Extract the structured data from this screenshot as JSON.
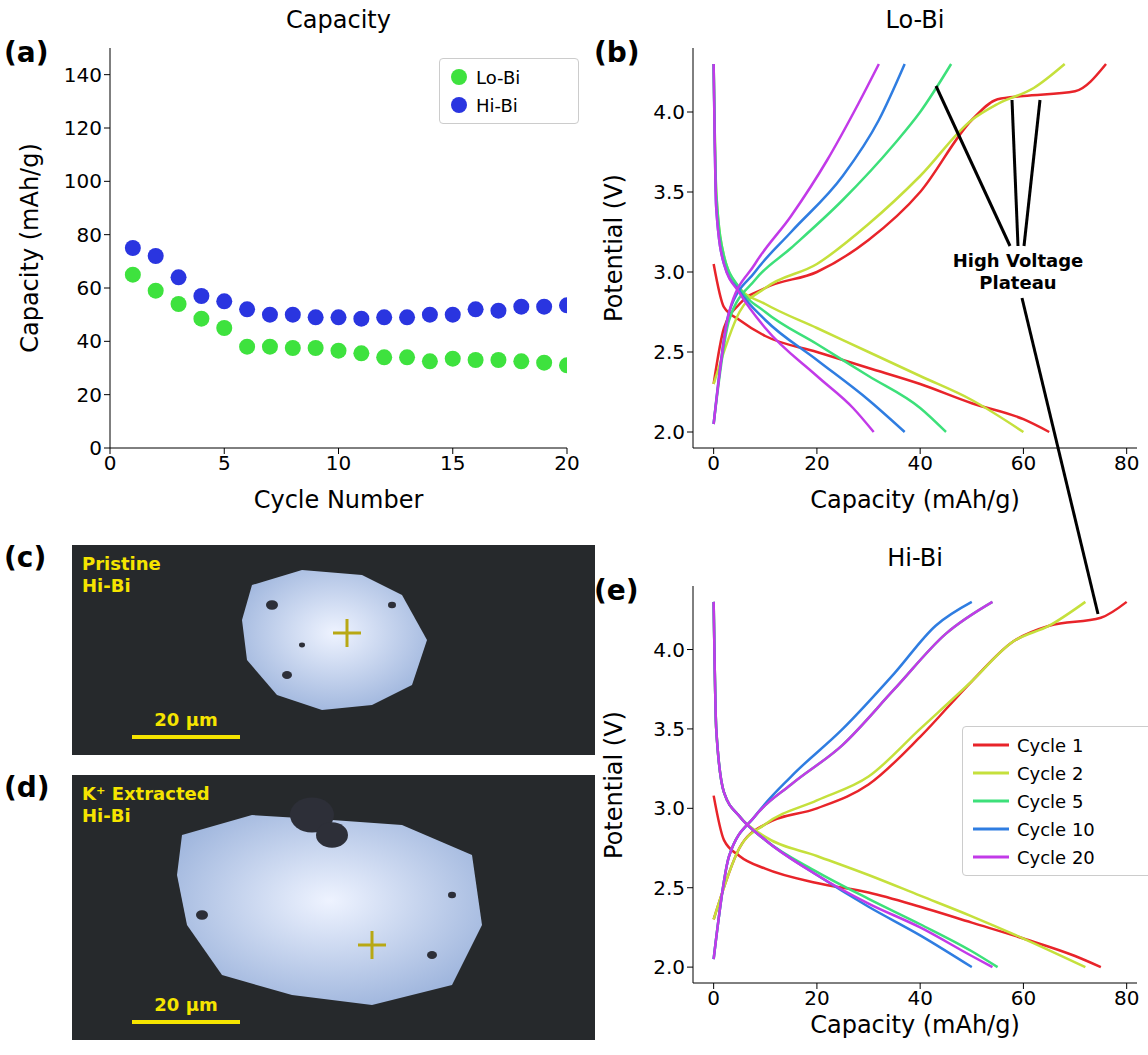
{
  "chart_data": [
    {
      "panel": "(a)",
      "type": "scatter",
      "title": "Capacity",
      "x_label": "Cycle Number",
      "y_label": "Capacity (mAh/g)",
      "xlim": [
        0,
        20
      ],
      "xticks": [
        0,
        5,
        10,
        15,
        20
      ],
      "ylim": [
        0,
        150
      ],
      "yticks": [
        0,
        20,
        40,
        60,
        80,
        100,
        120,
        140
      ],
      "legend": "upper right",
      "marker": "circle",
      "x": [
        1,
        2,
        3,
        4,
        5,
        6,
        7,
        8,
        9,
        10,
        11,
        12,
        13,
        14,
        15,
        16,
        17,
        18,
        19,
        20
      ],
      "series": [
        {
          "name": "Lo-Bi",
          "color": "#3ee23e",
          "values": [
            65,
            59,
            54,
            48.5,
            45,
            38,
            38,
            37.5,
            37.5,
            36.5,
            35.5,
            34,
            34,
            32.5,
            33.5,
            33,
            33,
            32.5,
            32,
            31
          ]
        },
        {
          "name": "Hi-Bi",
          "color": "#2a35e0",
          "values": [
            75,
            72,
            64,
            57,
            55,
            52,
            50,
            50,
            49,
            49,
            48.5,
            49,
            49,
            50,
            50,
            52,
            51.5,
            53,
            53,
            53.5
          ]
        }
      ]
    },
    {
      "panel": "(b)",
      "type": "line",
      "title": "Lo-Bi",
      "x_label": "Capacity (mAh/g)",
      "y_label": "Potential (V)",
      "xlim": [
        -4,
        82
      ],
      "xticks": [
        0,
        20,
        40,
        60,
        80
      ],
      "ylim": [
        1.9,
        4.4
      ],
      "yticks": [
        {
          "value": 2,
          "label": "2.0"
        },
        2.5,
        {
          "value": 3,
          "label": "3.0"
        },
        3.5,
        {
          "value": 4,
          "label": "4.0"
        }
      ],
      "series": [
        {
          "name": "Cycle 1",
          "color": "#e8242a",
          "x": [
            0,
            2,
            5,
            10,
            20,
            30,
            40,
            50,
            55,
            60,
            70,
            76,
            null,
            0,
            2,
            5,
            10,
            20,
            30,
            40,
            50,
            60,
            65
          ],
          "values": [
            2.3,
            2.65,
            2.8,
            2.9,
            3.0,
            3.2,
            3.5,
            3.95,
            4.08,
            4.1,
            4.13,
            4.3,
            null,
            3.05,
            2.78,
            2.7,
            2.6,
            2.5,
            2.4,
            2.3,
            2.18,
            2.08,
            2.0
          ]
        },
        {
          "name": "Cycle 2",
          "color": "#c5e03c",
          "x": [
            0,
            5,
            10,
            20,
            30,
            40,
            50,
            55,
            62,
            68,
            null,
            0,
            0.5,
            2,
            5,
            10,
            20,
            30,
            40,
            50,
            60
          ],
          "values": [
            2.3,
            2.75,
            2.9,
            3.05,
            3.3,
            3.6,
            3.95,
            4.05,
            4.15,
            4.3,
            null,
            4.3,
            3.5,
            3.1,
            2.9,
            2.8,
            2.65,
            2.5,
            2.35,
            2.2,
            2.0
          ]
        },
        {
          "name": "Cycle 5",
          "color": "#3de07a",
          "x": [
            0,
            3,
            8,
            15,
            25,
            35,
            40,
            46,
            null,
            0,
            0.5,
            2,
            5,
            10,
            20,
            30,
            40,
            45
          ],
          "values": [
            2.05,
            2.7,
            2.95,
            3.15,
            3.45,
            3.8,
            4.0,
            4.3,
            null,
            4.3,
            3.5,
            3.1,
            2.9,
            2.75,
            2.55,
            2.35,
            2.15,
            2.0
          ]
        },
        {
          "name": "Cycle 10",
          "color": "#2f7de1",
          "x": [
            0,
            3,
            8,
            15,
            25,
            32,
            37,
            null,
            0,
            0.5,
            2,
            5,
            10,
            20,
            30,
            37
          ],
          "values": [
            2.05,
            2.75,
            3.0,
            3.25,
            3.6,
            3.95,
            4.3,
            null,
            4.3,
            3.4,
            3.05,
            2.88,
            2.7,
            2.45,
            2.2,
            2.0
          ]
        },
        {
          "name": "Cycle 20",
          "color": "#c23ae8",
          "x": [
            0,
            3,
            8,
            15,
            22,
            28,
            32,
            null,
            0,
            0.5,
            2,
            5,
            10,
            20,
            27,
            31
          ],
          "values": [
            2.05,
            2.75,
            3.05,
            3.35,
            3.7,
            4.05,
            4.3,
            null,
            4.3,
            3.4,
            3.05,
            2.87,
            2.65,
            2.35,
            2.15,
            2.0
          ]
        }
      ]
    },
    {
      "panel": "(e)",
      "type": "line",
      "title": "Hi-Bi",
      "x_label": "Capacity (mAh/g)",
      "y_label": "Potential (V)",
      "xlim": [
        -4,
        82
      ],
      "xticks": [
        0,
        20,
        40,
        60,
        80
      ],
      "ylim": [
        1.9,
        4.4
      ],
      "yticks": [
        {
          "value": 2,
          "label": "2.0"
        },
        2.5,
        {
          "value": 3,
          "label": "3.0"
        },
        3.5,
        {
          "value": 4,
          "label": "4.0"
        }
      ],
      "legend": "right",
      "series": [
        {
          "name": "Cycle 1",
          "color": "#e8242a",
          "x": [
            0,
            5,
            10,
            20,
            30,
            40,
            50,
            58,
            65,
            75,
            80,
            null,
            0,
            2,
            5,
            10,
            20,
            30,
            40,
            50,
            60,
            70,
            75
          ],
          "values": [
            2.3,
            2.75,
            2.9,
            3.0,
            3.15,
            3.45,
            3.8,
            4.05,
            4.15,
            4.2,
            4.3,
            null,
            3.08,
            2.8,
            2.7,
            2.62,
            2.53,
            2.47,
            2.38,
            2.28,
            2.18,
            2.07,
            2.0
          ]
        },
        {
          "name": "Cycle 2",
          "color": "#c5e03c",
          "x": [
            0,
            5,
            10,
            20,
            30,
            40,
            50,
            58,
            65,
            72,
            null,
            0,
            0.5,
            2,
            5,
            10,
            20,
            30,
            40,
            50,
            60,
            72
          ],
          "values": [
            2.3,
            2.75,
            2.9,
            3.05,
            3.2,
            3.5,
            3.8,
            4.05,
            4.15,
            4.3,
            null,
            4.3,
            3.5,
            3.1,
            2.95,
            2.82,
            2.7,
            2.58,
            2.45,
            2.32,
            2.18,
            2.0
          ]
        },
        {
          "name": "Cycle 5",
          "color": "#3de07a",
          "x": [
            0,
            3,
            8,
            15,
            25,
            35,
            45,
            54,
            null,
            0,
            0.5,
            2,
            5,
            10,
            20,
            30,
            40,
            50,
            55
          ],
          "values": [
            2.05,
            2.7,
            2.95,
            3.15,
            3.4,
            3.75,
            4.1,
            4.3,
            null,
            4.3,
            3.5,
            3.1,
            2.95,
            2.8,
            2.6,
            2.43,
            2.27,
            2.1,
            2.0
          ]
        },
        {
          "name": "Cycle 10",
          "color": "#2f7de1",
          "x": [
            0,
            3,
            8,
            15,
            25,
            35,
            43,
            50,
            null,
            0,
            0.5,
            2,
            5,
            10,
            20,
            30,
            40,
            50
          ],
          "values": [
            2.05,
            2.7,
            2.95,
            3.2,
            3.5,
            3.85,
            4.15,
            4.3,
            null,
            4.3,
            3.5,
            3.1,
            2.95,
            2.8,
            2.58,
            2.38,
            2.2,
            2.0
          ]
        },
        {
          "name": "Cycle 20",
          "color": "#c23ae8",
          "x": [
            0,
            3,
            8,
            15,
            25,
            35,
            45,
            54,
            null,
            0,
            0.5,
            2,
            5,
            10,
            20,
            30,
            40,
            50,
            54
          ],
          "values": [
            2.05,
            2.7,
            2.95,
            3.15,
            3.4,
            3.75,
            4.1,
            4.3,
            null,
            4.3,
            3.5,
            3.1,
            2.95,
            2.8,
            2.58,
            2.4,
            2.25,
            2.07,
            2.0
          ]
        }
      ]
    }
  ],
  "images": [
    {
      "panel": "(c)",
      "label_lines": [
        "Pristine",
        "Hi-Bi"
      ],
      "scale_bar": "20 µm"
    },
    {
      "panel": "(d)",
      "label_lines": [
        "K⁺ Extracted",
        "Hi-Bi"
      ],
      "scale_bar": "20 µm"
    }
  ],
  "annotation": "High Voltage Plateau"
}
